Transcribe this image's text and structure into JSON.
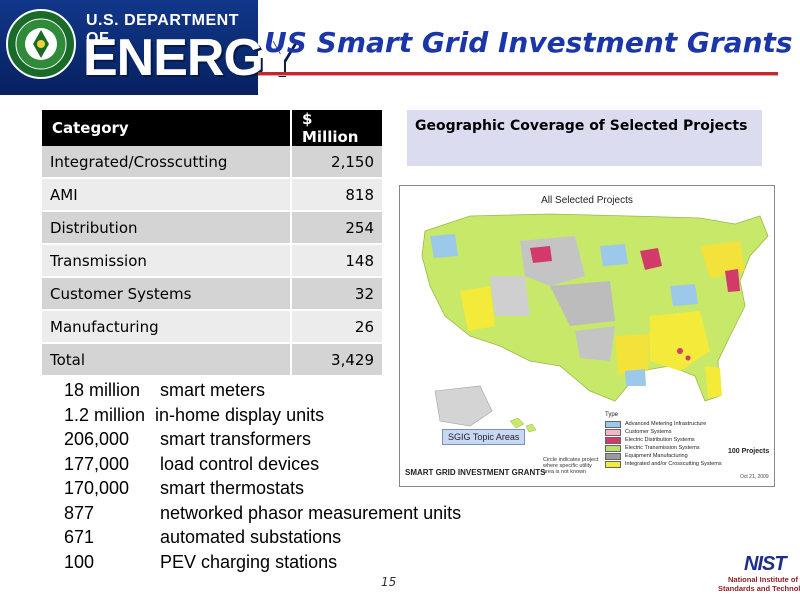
{
  "header": {
    "agency_line": "U.S. DEPARTMENT OF",
    "agency_word": "ENERGY",
    "title": "US Smart Grid Investment Grants"
  },
  "table": {
    "headers": [
      "Category",
      "$ Million"
    ],
    "rows": [
      {
        "category": "Integrated/Crosscutting",
        "value": "2,150"
      },
      {
        "category": "AMI",
        "value": "818"
      },
      {
        "category": "Distribution",
        "value": "254"
      },
      {
        "category": "Transmission",
        "value": "148"
      },
      {
        "category": "Customer Systems",
        "value": "32"
      },
      {
        "category": "Manufacturing",
        "value": "26"
      },
      {
        "category": "Total",
        "value": "3,429"
      }
    ]
  },
  "stats": [
    {
      "count": "18 million",
      "item": "smart meters"
    },
    {
      "count": "1.2 million",
      "item": "in-home display units"
    },
    {
      "count": "206,000",
      "item": "smart transformers"
    },
    {
      "count": "177,000",
      "item": "load control devices"
    },
    {
      "count": "170,000",
      "item": "smart thermostats"
    },
    {
      "count": "877",
      "item": "networked phasor measurement units"
    },
    {
      "count": "671",
      "item": "automated substations"
    },
    {
      "count": "100",
      "item": "PEV charging stations"
    }
  ],
  "geo_panel": {
    "heading": "Geographic Coverage of Selected Projects"
  },
  "map": {
    "title": "All Selected Projects",
    "overlay_label": "SGIG Topic Areas",
    "caption": "SMART GRID INVESTMENT GRANTS",
    "note": "Circle indicates project where specific utility area is not known",
    "legend_title": "Type",
    "legend": [
      {
        "label": "Advanced Metering Infrastructure",
        "color": "#9cc8ea"
      },
      {
        "label": "Customer Systems",
        "color": "#f4b6c8"
      },
      {
        "label": "Electric Distribution Systems",
        "color": "#d23a6a"
      },
      {
        "label": "Electric Transmission Systems",
        "color": "#b8e06a"
      },
      {
        "label": "Equipment Manufacturing",
        "color": "#9a9a9a"
      },
      {
        "label": "Integrated and/or Crosscutting Systems",
        "color": "#f4ea3a"
      }
    ],
    "project_count": "100 Projects",
    "date": "Oct 21, 2009"
  },
  "footer": {
    "page_number": "15",
    "nist_word": "NIST",
    "nist_line1": "National Institute of",
    "nist_line2": "Standards and Technology"
  }
}
